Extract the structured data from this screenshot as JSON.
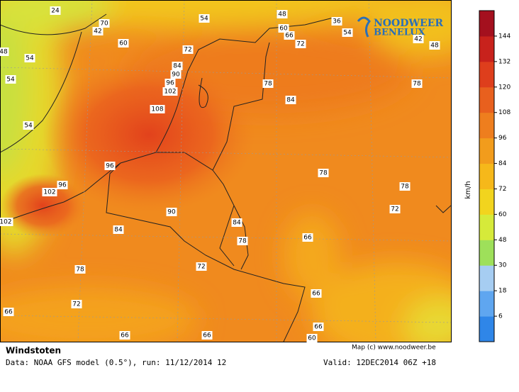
{
  "map": {
    "labels": [
      "24",
      "70",
      "42",
      "54",
      "48",
      "36",
      "54",
      "60",
      "66",
      "72",
      "42",
      "48",
      "60",
      "72",
      "48",
      "54",
      "54",
      "84",
      "90",
      "96",
      "102",
      "78",
      "84",
      "78",
      "108",
      "54",
      "96",
      "78",
      "96",
      "102",
      "78",
      "72",
      "90",
      "102",
      "84",
      "84",
      "78",
      "66",
      "78",
      "72",
      "66",
      "72",
      "66",
      "66",
      "60",
      "66",
      "66"
    ]
  },
  "legend": {
    "ticks": [
      "6",
      "18",
      "30",
      "48",
      "60",
      "72",
      "84",
      "96",
      "108",
      "120",
      "132",
      "144"
    ],
    "unit": "km/h",
    "colors": [
      "#2f86e8",
      "#5fa6f0",
      "#a6cdf2",
      "#9ee05a",
      "#d6ea3a",
      "#f2d41e",
      "#f6b81a",
      "#f29c1c",
      "#ee7e1e",
      "#e8601e",
      "#de3e1c",
      "#c8221c",
      "#a4101e"
    ]
  },
  "logo": {
    "line1": "NOODWEER",
    "line2": "BENELUX"
  },
  "footer": {
    "title": "Windstoten",
    "data": "Data: NOAA GFS model (0.5°), run: 11/12/2014 12",
    "credit": "Map (c) www.noodweer.be",
    "valid": "Valid: 12DEC2014 06Z +18"
  }
}
